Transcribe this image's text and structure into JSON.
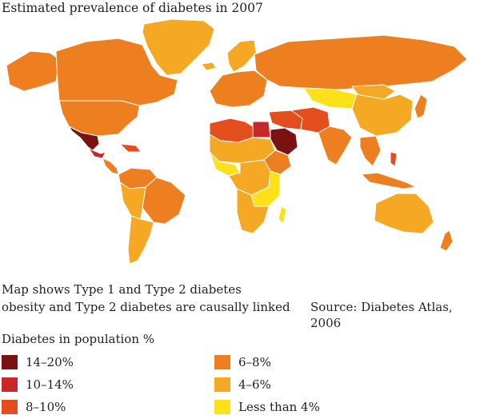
{
  "title": "Estimated prevalence of diabetes in 2007",
  "notes": {
    "line1": "Map shows Type 1 and Type 2 diabetes",
    "line2": "obesity and Type 2 diabetes are causally linked"
  },
  "source": "Source: Diabetes Atlas, 2006",
  "legend": {
    "title": "Diabetes in population %",
    "items": [
      {
        "label": "14–20%",
        "color": "#7a1212"
      },
      {
        "label": "10–14%",
        "color": "#c8282a"
      },
      {
        "label": "8–10%",
        "color": "#e44e1c"
      },
      {
        "label": "6–8%",
        "color": "#ee7f20"
      },
      {
        "label": "4–6%",
        "color": "#f4a823"
      },
      {
        "label": "Less than 4%",
        "color": "#fbe11a"
      }
    ]
  },
  "colors": {
    "c14_20": "#7a1212",
    "c10_14": "#c8282a",
    "c8_10": "#e44e1c",
    "c6_8": "#ee7f20",
    "c4_6": "#f4a823",
    "clt4": "#fbe11a"
  }
}
